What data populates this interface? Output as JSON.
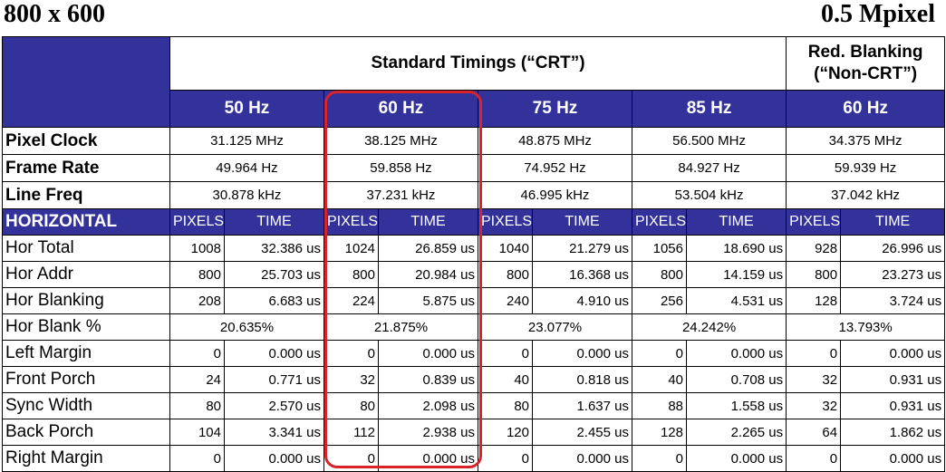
{
  "page": {
    "title_left": "800 x 600",
    "title_right": "0.5 Mpixel"
  },
  "header": {
    "standard": "Standard Timings (“CRT”)",
    "reduced_line1": "Red. Blanking",
    "reduced_line2": "(“Non-CRT”)",
    "columns": [
      "50 Hz",
      "60 Hz",
      "75 Hz",
      "85 Hz",
      "60 Hz"
    ]
  },
  "summary_rows": [
    {
      "label": "Pixel Clock",
      "values": [
        "31.125 MHz",
        "38.125 MHz",
        "48.875 MHz",
        "56.500 MHz",
        "34.375 MHz"
      ]
    },
    {
      "label": "Frame Rate",
      "values": [
        "49.964 Hz",
        "59.858 Hz",
        "74.952 Hz",
        "84.927 Hz",
        "59.939 Hz"
      ]
    },
    {
      "label": "Line Freq",
      "values": [
        "30.878 kHz",
        "37.231 kHz",
        "46.995 kHz",
        "53.504 kHz",
        "37.042 kHz"
      ]
    }
  ],
  "horizontal": {
    "label": "HORIZONTAL",
    "sub_pixels": "PIXELS",
    "sub_time": "TIME"
  },
  "rows": [
    {
      "label": "Hor Total",
      "cells": [
        [
          "1008",
          "32.386 us"
        ],
        [
          "1024",
          "26.859 us"
        ],
        [
          "1040",
          "21.279 us"
        ],
        [
          "1056",
          "18.690 us"
        ],
        [
          "928",
          "26.996 us"
        ]
      ]
    },
    {
      "label": "Hor Addr",
      "cells": [
        [
          "800",
          "25.703 us"
        ],
        [
          "800",
          "20.984 us"
        ],
        [
          "800",
          "16.368 us"
        ],
        [
          "800",
          "14.159 us"
        ],
        [
          "800",
          "23.273 us"
        ]
      ]
    },
    {
      "label": "Hor Blanking",
      "cells": [
        [
          "208",
          "6.683 us"
        ],
        [
          "224",
          "5.875 us"
        ],
        [
          "240",
          "4.910 us"
        ],
        [
          "256",
          "4.531 us"
        ],
        [
          "128",
          "3.724 us"
        ]
      ]
    },
    {
      "label": "Hor Blank %",
      "spans": [
        "20.635%",
        "21.875%",
        "23.077%",
        "24.242%",
        "13.793%"
      ]
    },
    {
      "label": "Left Margin",
      "cells": [
        [
          "0",
          "0.000 us"
        ],
        [
          "0",
          "0.000 us"
        ],
        [
          "0",
          "0.000 us"
        ],
        [
          "0",
          "0.000 us"
        ],
        [
          "0",
          "0.000 us"
        ]
      ]
    },
    {
      "label": "Front Porch",
      "cells": [
        [
          "24",
          "0.771 us"
        ],
        [
          "32",
          "0.839 us"
        ],
        [
          "40",
          "0.818 us"
        ],
        [
          "40",
          "0.708 us"
        ],
        [
          "32",
          "0.931 us"
        ]
      ]
    },
    {
      "label": "Sync Width",
      "cells": [
        [
          "80",
          "2.570 us"
        ],
        [
          "80",
          "2.098 us"
        ],
        [
          "80",
          "1.637 us"
        ],
        [
          "88",
          "1.558 us"
        ],
        [
          "32",
          "0.931 us"
        ]
      ]
    },
    {
      "label": "Back Porch",
      "cells": [
        [
          "104",
          "3.341 us"
        ],
        [
          "112",
          "2.938 us"
        ],
        [
          "120",
          "2.455 us"
        ],
        [
          "128",
          "2.265 us"
        ],
        [
          "64",
          "1.862 us"
        ]
      ]
    },
    {
      "label": "Right Margin",
      "cells": [
        [
          "0",
          "0.000 us"
        ],
        [
          "0",
          "0.000 us"
        ],
        [
          "0",
          "0.000 us"
        ],
        [
          "0",
          "0.000 us"
        ],
        [
          "0",
          "0.000 us"
        ]
      ]
    }
  ],
  "colors": {
    "header_navy": "#32329a",
    "highlight_red": "#d8232a"
  }
}
